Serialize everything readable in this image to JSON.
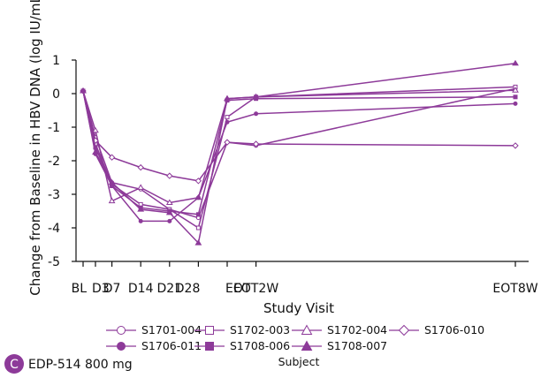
{
  "chart_data": {
    "type": "line",
    "title": "",
    "xlabel": "Study Visit",
    "ylabel": "Change from Baseline in HBV DNA (log IU/mL)",
    "ylim": [
      -5,
      1
    ],
    "yticks": [
      1,
      0,
      -1,
      -2,
      -3,
      -4,
      -5
    ],
    "categories": [
      "BL",
      "D3",
      "D7",
      "D14",
      "D21",
      "D28",
      "EOT",
      "EOT2W",
      "EOT8W"
    ],
    "x": [
      0,
      3,
      7,
      14,
      21,
      28,
      35,
      42,
      105
    ],
    "series": [
      {
        "name": "S1701-004",
        "marker": "circle-open",
        "values": [
          0.08,
          -1.3,
          -2.65,
          -2.85,
          -3.45,
          -3.7,
          -1.45,
          -1.55,
          0.15
        ]
      },
      {
        "name": "S1702-003",
        "marker": "square-open",
        "values": [
          0.08,
          -1.5,
          -2.7,
          -3.3,
          -3.45,
          -4.0,
          -0.7,
          -0.1,
          0.2
        ]
      },
      {
        "name": "S1702-004",
        "marker": "triangle-open",
        "values": [
          0.08,
          -1.1,
          -3.2,
          -2.8,
          -3.25,
          -3.1,
          -0.15,
          -0.1,
          0.1
        ]
      },
      {
        "name": "S1706-010",
        "marker": "diamond-open",
        "values": [
          0.08,
          -1.4,
          -1.9,
          -2.2,
          -2.45,
          -2.6,
          -1.45,
          -1.5,
          -1.55
        ]
      },
      {
        "name": "S1706-011",
        "marker": "circle-filled",
        "values": [
          0.08,
          -1.8,
          -2.75,
          -3.8,
          -3.8,
          -3.1,
          -0.85,
          -0.6,
          -0.3
        ]
      },
      {
        "name": "S1708-006",
        "marker": "square-filled",
        "values": [
          0.08,
          -1.6,
          -2.75,
          -3.4,
          -3.5,
          -3.6,
          -0.2,
          -0.15,
          -0.1
        ]
      },
      {
        "name": "S1708-007",
        "marker": "triangle-filled",
        "values": [
          0.08,
          -1.75,
          -2.65,
          -3.45,
          -3.55,
          -4.45,
          -0.15,
          -0.1,
          0.9
        ]
      }
    ],
    "grid": false,
    "legend": {
      "placement": "bottom",
      "title": "Subject"
    },
    "series_color": "#8d3a99"
  },
  "panel": {
    "letter": "C",
    "label": "EDP-514 800 mg"
  }
}
